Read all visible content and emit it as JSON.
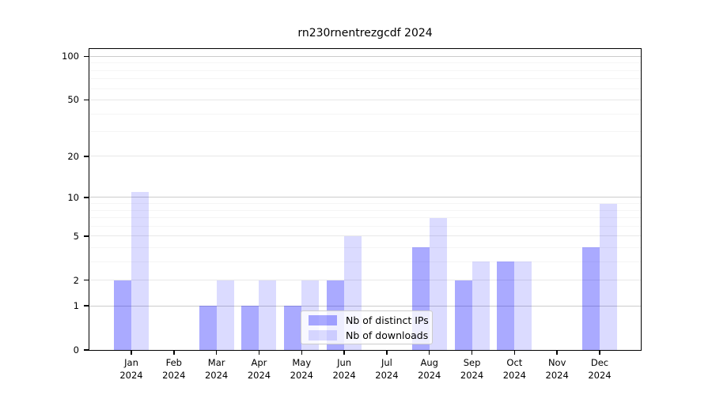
{
  "title": "rn230rnentrezgcdf 2024",
  "chart_data": {
    "type": "bar",
    "title": "rn230rnentrezgcdf 2024",
    "categories": [
      "Jan",
      "Feb",
      "Mar",
      "Apr",
      "May",
      "Jun",
      "Jul",
      "Aug",
      "Sep",
      "Oct",
      "Nov",
      "Dec"
    ],
    "year": "2024",
    "series": [
      {
        "name": "Nb of distinct IPs",
        "color": "#0000ff",
        "alpha": 0.335,
        "values": [
          2,
          0,
          1,
          1,
          1,
          2,
          0,
          4,
          2,
          3,
          0,
          4
        ]
      },
      {
        "name": "Nb of downloads",
        "color": "#0000ff",
        "alpha": 0.14,
        "values": [
          11,
          0,
          2,
          2,
          2,
          5,
          0,
          7,
          3,
          3,
          0,
          9
        ]
      }
    ],
    "xlabel": "",
    "ylabel": "",
    "yscale": "log1p",
    "ylim": [
      0,
      115
    ],
    "yticks": [
      0,
      1,
      2,
      5,
      10,
      20,
      50,
      100
    ],
    "minor_gridlines": [
      3,
      4,
      6,
      7,
      8,
      9,
      30,
      40,
      60,
      70,
      80,
      90
    ],
    "grid": true,
    "legend_position": "lower center",
    "gridline_color_decade": "#cccccc",
    "gridline_color_major": "#e8e8e8",
    "gridline_color_minor": "#f5f5f5",
    "axis_color": "#000000"
  }
}
